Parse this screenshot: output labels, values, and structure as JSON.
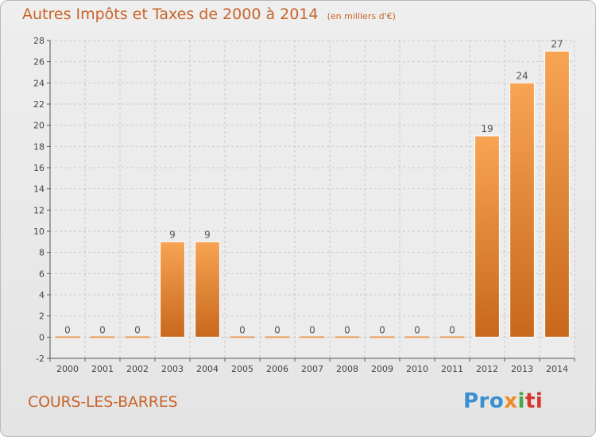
{
  "header": {
    "title": "Autres Impôts et Taxes de 2000 à 2014",
    "unit": "(en milliers d'€)"
  },
  "footer": {
    "commune": "COURS-LES-BARRES",
    "logo": {
      "parts": [
        "Pro",
        "x",
        "i",
        "ti"
      ],
      "colors": [
        "#3a8fd0",
        "#f08a24",
        "#4aa84a",
        "#d7362b"
      ]
    }
  },
  "colors": {
    "bar_light": "#f7a453",
    "bar_dark": "#c8681c",
    "title": "#c8642a",
    "grid": "#c9c9c9"
  },
  "chart_data": {
    "type": "bar",
    "title": "Autres Impôts et Taxes de 2000 à 2014",
    "subtitle": "(en milliers d'€)",
    "categories": [
      "2000",
      "2001",
      "2002",
      "2003",
      "2004",
      "2005",
      "2006",
      "2007",
      "2008",
      "2009",
      "2010",
      "2011",
      "2012",
      "2013",
      "2014"
    ],
    "values": [
      0,
      0,
      0,
      9,
      9,
      0,
      0,
      0,
      0,
      0,
      0,
      0,
      19,
      24,
      27
    ],
    "data_labels": [
      "0",
      "0",
      "0",
      "9",
      "9",
      "0",
      "0",
      "0",
      "0",
      "0",
      "0",
      "0",
      "19",
      "24",
      "27"
    ],
    "ylim": [
      -2,
      28
    ],
    "yticks": [
      -2,
      0,
      2,
      4,
      6,
      8,
      10,
      12,
      14,
      16,
      18,
      20,
      22,
      24,
      26,
      28
    ],
    "grid": true,
    "legend": "none"
  }
}
